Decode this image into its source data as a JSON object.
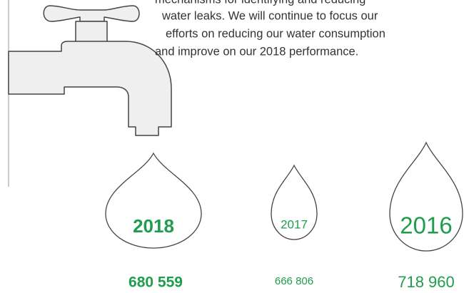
{
  "text": {
    "lines": [
      "mechanisms for identifying and reducing",
      "water leaks. We will continue to focus our",
      "efforts on reducing our water consumption",
      "and improve on our 2018 performance."
    ]
  },
  "items": [
    {
      "year": "2018",
      "value": "680 559"
    },
    {
      "year": "2017",
      "value": "666 806"
    },
    {
      "year": "2016",
      "value": "718 960"
    }
  ]
}
